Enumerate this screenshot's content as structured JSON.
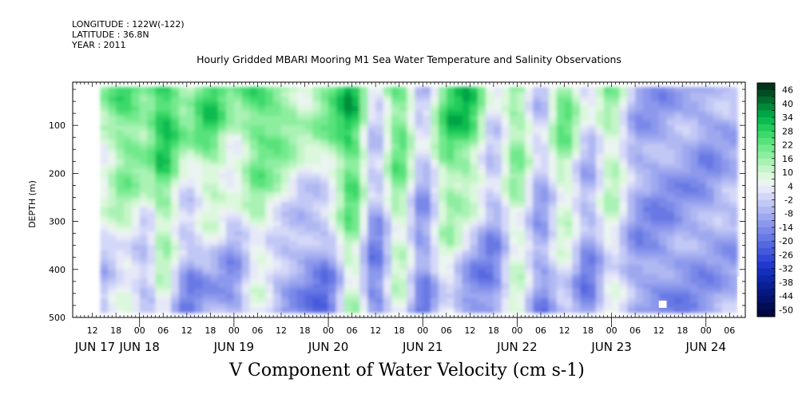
{
  "header": {
    "longitude": "LONGITUDE : 122W(-122)",
    "latitude": "LATITUDE : 36.8N",
    "year": "YEAR : 2011"
  },
  "chart_data": {
    "type": "heatmap",
    "title": "Hourly Gridded MBARI Mooring M1 Sea Water Temperature and Salinity Observations",
    "subtitle": "V Component of Water Velocity (cm s-1)",
    "ylabel": "DEPTH (m)",
    "y_axis": {
      "ylim": [
        500,
        10
      ],
      "inverted": true,
      "ticks": [
        100,
        200,
        300,
        400,
        500
      ],
      "tick_labels": [
        "100",
        "200",
        "300",
        "400",
        "500"
      ]
    },
    "x_axis": {
      "hour_ticks": [
        "12",
        "18",
        "00",
        "06",
        "12",
        "18",
        "00",
        "06",
        "12",
        "18",
        "00",
        "06",
        "12",
        "18",
        "00",
        "06",
        "12",
        "18",
        "00",
        "06",
        "12",
        "18",
        "00",
        "06",
        "12",
        "18",
        "00",
        "06",
        "12",
        "18",
        "00",
        "06"
      ],
      "day_labels": [
        "JUN 17",
        "JUN 18",
        "JUN 19",
        "JUN 20",
        "JUN 21",
        "JUN 22",
        "JUN 23",
        "JUN 24"
      ],
      "range": [
        "2011-06-17 07:00",
        "2011-06-24 10:00"
      ]
    },
    "data_range": {
      "time_start": "2011-06-17 14:00",
      "time_end": "2011-06-24 08:00",
      "depth_min": 20,
      "depth_max": 485
    },
    "missing_regions": [
      {
        "time_start": "2011-06-23 12:00",
        "time_end": "2011-06-23 14:00",
        "depth_start": 465,
        "depth_end": 480
      },
      {
        "time_start": "2011-06-24 08:00",
        "time_end": "2011-06-24 10:00",
        "depth_start": 415,
        "depth_end": 485
      }
    ],
    "colorbar": {
      "labels": [
        "46",
        "40",
        "34",
        "28",
        "22",
        "16",
        "10",
        "4",
        "-2",
        "-8",
        "-14",
        "-20",
        "-26",
        "-32",
        "-38",
        "-44",
        "-50"
      ],
      "levels": [
        49,
        46,
        43,
        40,
        37,
        34,
        31,
        28,
        25,
        22,
        19,
        16,
        13,
        10,
        7,
        4,
        1,
        -2,
        -5,
        -8,
        -11,
        -14,
        -17,
        -20,
        -23,
        -26,
        -29,
        -32,
        -35,
        -38,
        -41,
        -44,
        -47,
        -50
      ],
      "colors": [
        "#003318",
        "#004d22",
        "#006b2d",
        "#008a38",
        "#00a545",
        "#0bbb50",
        "#22cc5c",
        "#3dd96a",
        "#58e27b",
        "#73e98d",
        "#8eeea0",
        "#a9f2b4",
        "#c4f5c8",
        "#dcf8dc",
        "#eaf4f0",
        "#e6e8f8",
        "#d4d8f8",
        "#c2c8f5",
        "#b0b8f2",
        "#9ea8ef",
        "#8c98ec",
        "#7a88e8",
        "#6878e4",
        "#5668e0",
        "#4458db",
        "#3248d5",
        "#2038cc",
        "#1430bb",
        "#0c28a8",
        "#082094",
        "#061880",
        "#04126b",
        "#020c55",
        "#010840"
      ]
    },
    "velocity_profile_by_time": [
      {
        "time": "2011-06-17 14:00",
        "v_upper": 10,
        "v_lower": -6
      },
      {
        "time": "2011-06-17 20:00",
        "v_upper": 25,
        "v_lower": 4
      },
      {
        "time": "2011-06-18 02:00",
        "v_upper": 20,
        "v_lower": -10
      },
      {
        "time": "2011-06-18 06:00",
        "v_upper": 34,
        "v_lower": 12
      },
      {
        "time": "2011-06-18 12:00",
        "v_upper": 14,
        "v_lower": -16
      },
      {
        "time": "2011-06-18 18:00",
        "v_upper": 28,
        "v_lower": -6
      },
      {
        "time": "2011-06-19 00:00",
        "v_upper": 12,
        "v_lower": -14
      },
      {
        "time": "2011-06-19 06:00",
        "v_upper": 26,
        "v_lower": 6
      },
      {
        "time": "2011-06-19 12:00",
        "v_upper": 22,
        "v_lower": -10
      },
      {
        "time": "2011-06-19 18:00",
        "v_upper": 10,
        "v_lower": -14
      },
      {
        "time": "2011-06-20 00:00",
        "v_upper": 18,
        "v_lower": -18
      },
      {
        "time": "2011-06-20 06:00",
        "v_upper": 34,
        "v_lower": 16
      },
      {
        "time": "2011-06-20 12:00",
        "v_upper": -4,
        "v_lower": -22
      },
      {
        "time": "2011-06-20 18:00",
        "v_upper": 28,
        "v_lower": 12
      },
      {
        "time": "2011-06-21 00:00",
        "v_upper": -6,
        "v_lower": -20
      },
      {
        "time": "2011-06-21 06:00",
        "v_upper": 26,
        "v_lower": 8
      },
      {
        "time": "2011-06-21 12:00",
        "v_upper": 30,
        "v_lower": -12
      },
      {
        "time": "2011-06-21 18:00",
        "v_upper": -2,
        "v_lower": -18
      },
      {
        "time": "2011-06-22 00:00",
        "v_upper": 22,
        "v_lower": 10
      },
      {
        "time": "2011-06-22 06:00",
        "v_upper": -6,
        "v_lower": -16
      },
      {
        "time": "2011-06-22 12:00",
        "v_upper": 24,
        "v_lower": 4
      },
      {
        "time": "2011-06-22 18:00",
        "v_upper": -4,
        "v_lower": -18
      },
      {
        "time": "2011-06-23 00:00",
        "v_upper": 18,
        "v_lower": 6
      },
      {
        "time": "2011-06-23 06:00",
        "v_upper": -8,
        "v_lower": -12
      },
      {
        "time": "2011-06-23 12:00",
        "v_upper": -10,
        "v_lower": -14
      },
      {
        "time": "2011-06-23 18:00",
        "v_upper": -8,
        "v_lower": -12
      },
      {
        "time": "2011-06-24 00:00",
        "v_upper": -12,
        "v_lower": -10
      },
      {
        "time": "2011-06-24 06:00",
        "v_upper": -6,
        "v_lower": -8
      }
    ]
  }
}
